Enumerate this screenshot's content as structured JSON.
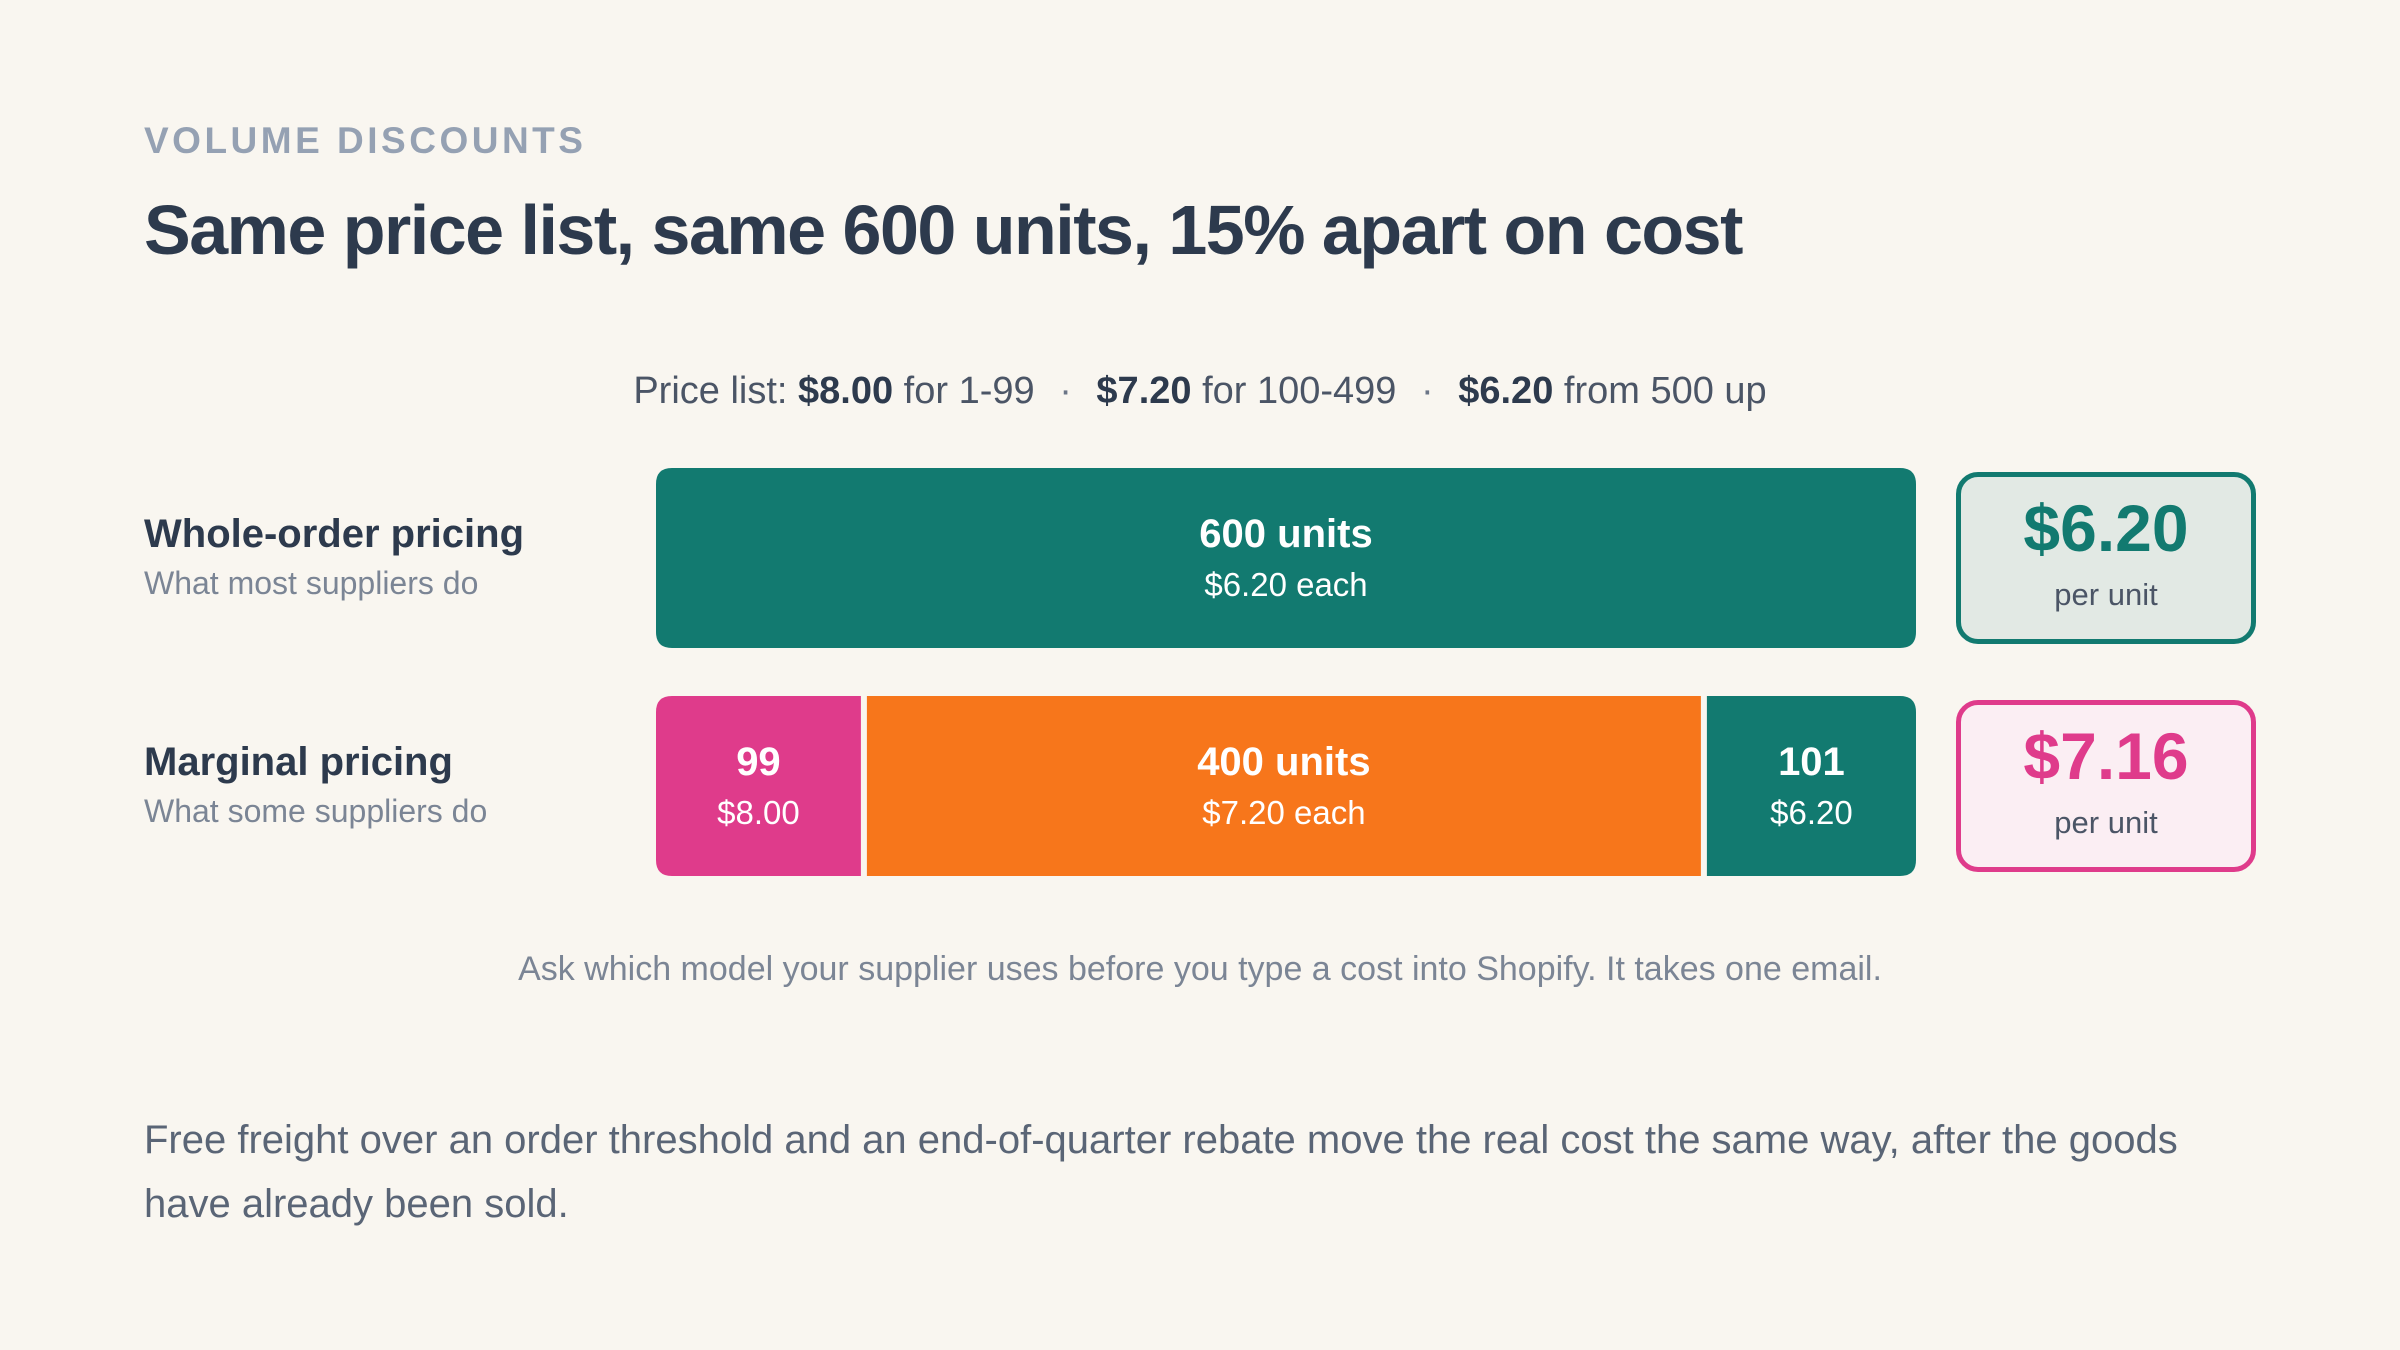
{
  "eyebrow": "VOLUME DISCOUNTS",
  "title": "Same price list, same 600 units, 15% apart on cost",
  "price_list": {
    "lead": "Price list:",
    "tiers": [
      {
        "price": "$8.00",
        "text": "for 1-99"
      },
      {
        "price": "$7.20",
        "text": "for 100-499"
      },
      {
        "price": "$6.20",
        "text": "from 500 up"
      }
    ],
    "separator": "·"
  },
  "rows": [
    {
      "name": "Whole-order pricing",
      "sub": "What most suppliers do"
    },
    {
      "name": "Marginal pricing",
      "sub": "What some suppliers do"
    }
  ],
  "cards": [
    {
      "value": "$6.20",
      "label": "per unit"
    },
    {
      "value": "$7.16",
      "label": "per unit"
    }
  ],
  "note": "Ask which model your supplier uses before you type a cost into Shopify. It takes one email.",
  "footer": "Free freight over an order threshold and an end-of-quarter rebate move the real cost the same way, after the goods have already been sold.",
  "colors": {
    "teal": "#127a70",
    "pink": "#df3b8b",
    "orange": "#f7761b",
    "background": "#f9f6f0"
  },
  "chart_data": {
    "type": "bar",
    "orientation": "horizontal-stacked",
    "total_units": 600,
    "series": [
      {
        "segments": [
          {
            "units": 600,
            "label": "600 units",
            "price_label": "$6.20 each",
            "unit_price": 6.2,
            "color": "#127a70"
          }
        ]
      },
      {
        "segments": [
          {
            "units": 99,
            "label": "99",
            "price_label": "$8.00",
            "unit_price": 8.0,
            "color": "#df3b8b"
          },
          {
            "units": 400,
            "label": "400 units",
            "price_label": "$7.20 each",
            "unit_price": 7.2,
            "color": "#f7761b"
          },
          {
            "units": 101,
            "label": "101",
            "price_label": "$6.20",
            "unit_price": 6.2,
            "color": "#127a70"
          }
        ]
      }
    ]
  }
}
